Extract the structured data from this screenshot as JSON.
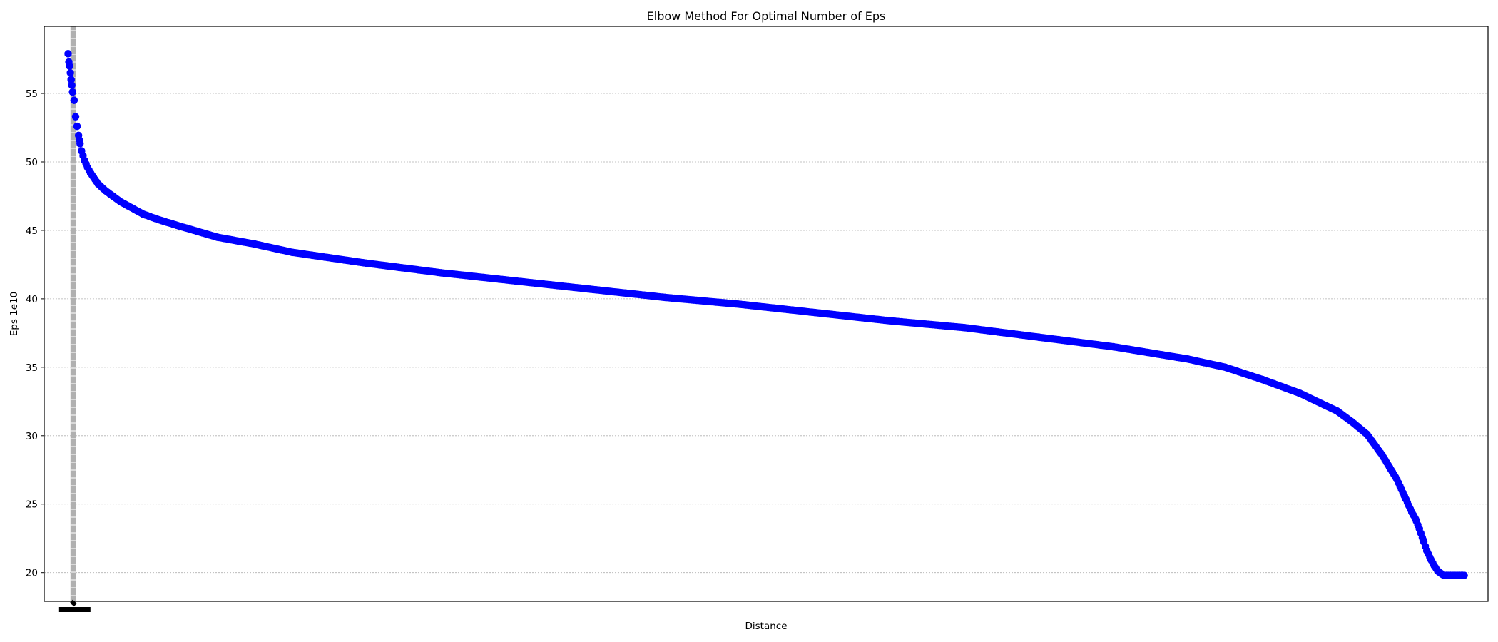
{
  "chart_data": {
    "type": "scatter",
    "title": "Elbow Method For Optimal Number of Eps",
    "xlabel": "Distance",
    "ylabel": "Eps 1e10",
    "xlim": [
      -32,
      1902
    ],
    "ylim": [
      17.9,
      59.9
    ],
    "yticks": [
      20,
      25,
      30,
      35,
      40,
      45,
      50,
      55
    ],
    "grid": {
      "y": true,
      "x": false,
      "style": "dotted"
    },
    "x_tick_note": "x tick labels densely overlapped near x=0, unreadable",
    "marker_color": "#0000ff",
    "grid_color": "#b0b0b0",
    "series": [
      {
        "x": [
          0,
          1,
          2,
          3,
          4,
          5,
          6,
          8,
          10,
          12,
          15,
          18,
          22,
          26,
          30,
          40,
          50,
          60,
          70,
          80,
          100,
          120,
          150,
          200,
          250,
          300,
          400,
          500,
          600,
          700,
          800,
          900,
          1000,
          1100,
          1200,
          1300,
          1400,
          1500,
          1550,
          1600,
          1650,
          1700,
          1720,
          1740,
          1760,
          1770,
          1780,
          1790,
          1800,
          1805,
          1810,
          1815,
          1820,
          1825,
          1830,
          1835,
          1840,
          1843,
          1846,
          1849,
          1852,
          1855,
          1858,
          1861,
          1864,
          1866,
          1868,
          1870
        ],
        "y": [
          57.9,
          57.3,
          57.0,
          56.5,
          56.0,
          55.6,
          55.1,
          54.5,
          53.3,
          52.6,
          51.6,
          50.8,
          50.1,
          49.6,
          49.2,
          48.4,
          47.9,
          47.5,
          47.1,
          46.8,
          46.2,
          45.8,
          45.3,
          44.5,
          44.0,
          43.4,
          42.6,
          41.9,
          41.3,
          40.7,
          40.1,
          39.6,
          39.0,
          38.4,
          37.9,
          37.2,
          36.5,
          35.6,
          35.0,
          34.1,
          33.1,
          31.8,
          31.0,
          30.1,
          28.6,
          27.7,
          26.8,
          25.6,
          24.4,
          23.9,
          23.2,
          22.4,
          21.6,
          21.0,
          20.5,
          20.1,
          19.9,
          19.8,
          19.8,
          19.8,
          19.8,
          19.8,
          19.8,
          19.8,
          19.8,
          19.8,
          19.8,
          19.8
        ]
      }
    ]
  }
}
